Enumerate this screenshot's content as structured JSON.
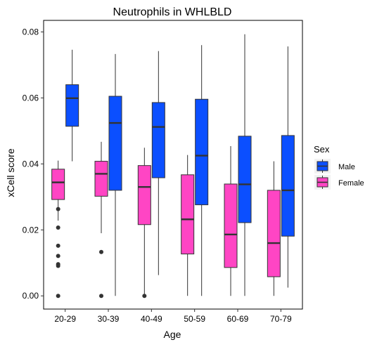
{
  "chart_data": {
    "type": "box",
    "title": "Neutrophils in WHLBLD",
    "xlabel": "Age",
    "ylabel": "xCell score",
    "ylim": [
      -0.004,
      0.0835
    ],
    "yticks": [
      0.0,
      0.02,
      0.04,
      0.06,
      0.08
    ],
    "ytick_labels": [
      "0.00",
      "0.02",
      "0.04",
      "0.06",
      "0.08"
    ],
    "categories": [
      "20-29",
      "30-39",
      "40-49",
      "50-59",
      "60-69",
      "70-79"
    ],
    "grid": false,
    "legend": {
      "title": "Sex",
      "position": "right"
    },
    "series": [
      {
        "name": "Female",
        "color": "#FF45C4",
        "boxes": [
          {
            "min": 0.0228,
            "q1": 0.0292,
            "median": 0.0344,
            "q3": 0.0384,
            "max": 0.041,
            "outliers": [
              0.0263,
              0.0207,
              0.0152,
              0.0121,
              0.0096,
              0.0091,
              0.0
            ]
          },
          {
            "min": 0.019,
            "q1": 0.0302,
            "median": 0.037,
            "q3": 0.0408,
            "max": 0.0467,
            "outliers": [
              0.0133,
              0.0
            ]
          },
          {
            "min": 0.0,
            "q1": 0.0216,
            "median": 0.033,
            "q3": 0.0395,
            "max": 0.0449,
            "outliers": [
              0.0
            ]
          },
          {
            "min": 0.0,
            "q1": 0.0127,
            "median": 0.0232,
            "q3": 0.0367,
            "max": 0.0427,
            "outliers": []
          },
          {
            "min": 0.0,
            "q1": 0.0086,
            "median": 0.0186,
            "q3": 0.0339,
            "max": 0.0454,
            "outliers": []
          },
          {
            "min": 0.0,
            "q1": 0.0058,
            "median": 0.016,
            "q3": 0.032,
            "max": 0.0408,
            "outliers": []
          }
        ]
      },
      {
        "name": "Male",
        "color": "#0B4FFF",
        "boxes": [
          {
            "min": 0.0408,
            "q1": 0.0514,
            "median": 0.0599,
            "q3": 0.064,
            "max": 0.0746,
            "outliers": []
          },
          {
            "min": 0.0,
            "q1": 0.032,
            "median": 0.0524,
            "q3": 0.0605,
            "max": 0.0733,
            "outliers": []
          },
          {
            "min": 0.0063,
            "q1": 0.0358,
            "median": 0.0512,
            "q3": 0.0586,
            "max": 0.0742,
            "outliers": []
          },
          {
            "min": 0.0,
            "q1": 0.0276,
            "median": 0.0425,
            "q3": 0.0596,
            "max": 0.076,
            "outliers": []
          },
          {
            "min": 0.0,
            "q1": 0.0222,
            "median": 0.0338,
            "q3": 0.0484,
            "max": 0.0793,
            "outliers": []
          },
          {
            "min": 0.0025,
            "q1": 0.0181,
            "median": 0.032,
            "q3": 0.0486,
            "max": 0.0756,
            "outliers": []
          }
        ]
      }
    ],
    "legend_order": [
      "Male",
      "Female"
    ]
  }
}
